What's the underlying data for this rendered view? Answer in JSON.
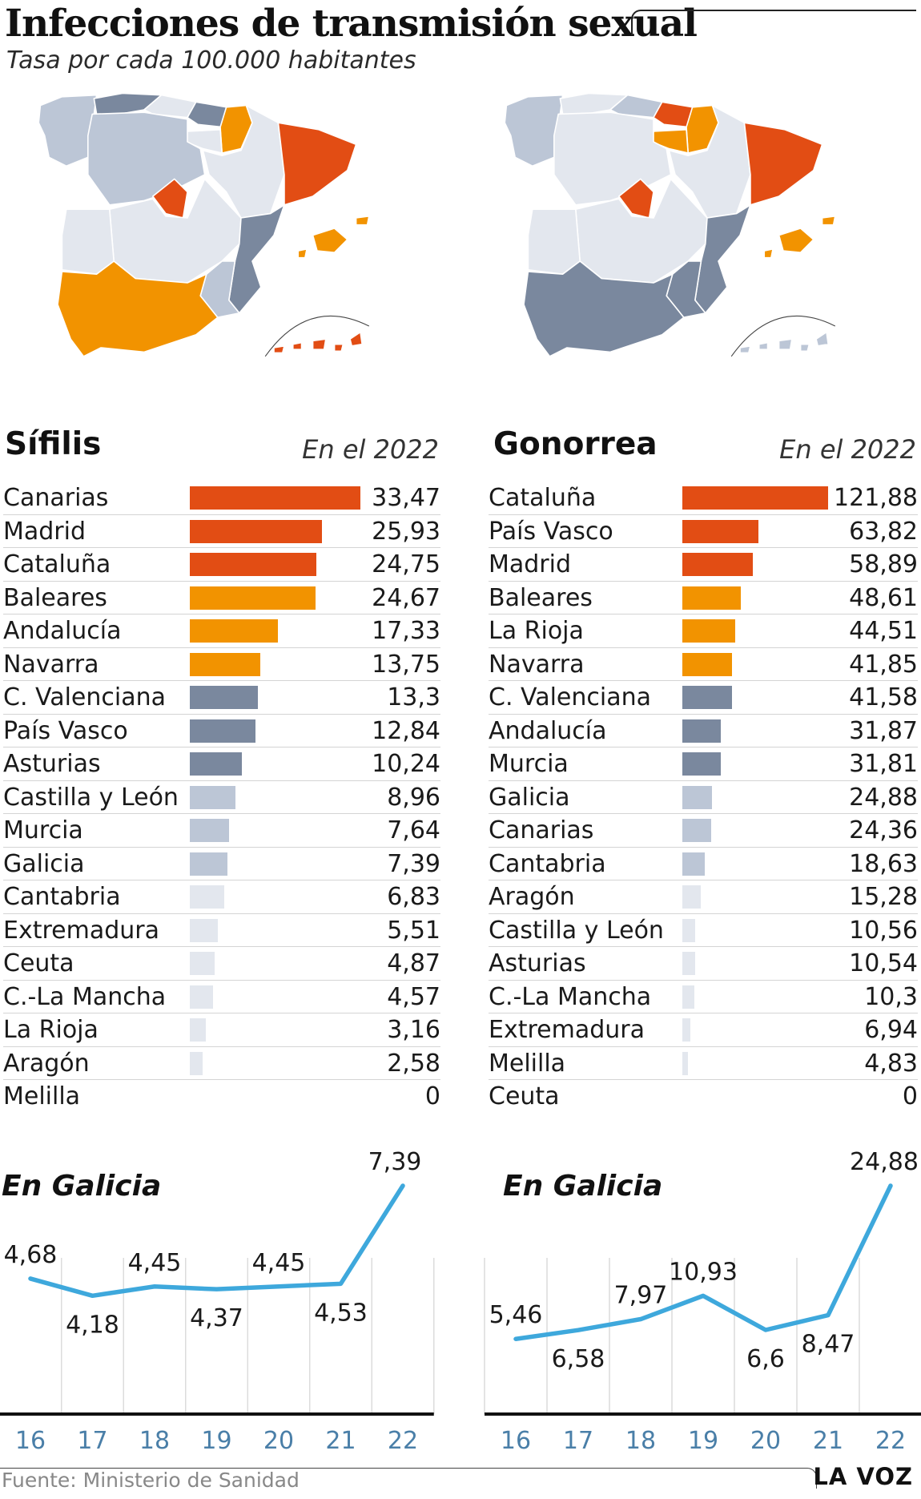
{
  "header": {
    "title": "Infecciones de transmisión sexual",
    "subtitle": "Tasa por cada 100.000 habitantes"
  },
  "colors": {
    "red": "#e24d14",
    "orange": "#f29300",
    "dark": "#7a889e",
    "light": "#bcc6d6",
    "pale": "#e3e7ee",
    "line": "#3ea8dc"
  },
  "sifilis": {
    "title": "Sífilis",
    "year_label": "En el 2022",
    "map_colors": {
      "galicia": "light",
      "asturias": "dark",
      "cantabria": "pale",
      "paisvasco": "dark",
      "navarra": "orange",
      "larioja": "pale",
      "aragon": "pale",
      "cataluna": "red",
      "castillayleon": "light",
      "madrid": "red",
      "clamancha": "pale",
      "extremadura": "pale",
      "valencia": "dark",
      "murcia": "light",
      "andalucia": "orange",
      "baleares": "orange",
      "canarias": "red"
    }
  },
  "gonorrea": {
    "title": "Gonorrea",
    "year_label": "En el 2022",
    "map_colors": {
      "galicia": "light",
      "asturias": "pale",
      "cantabria": "light",
      "paisvasco": "red",
      "navarra": "orange",
      "larioja": "orange",
      "aragon": "pale",
      "cataluna": "red",
      "castillayleon": "pale",
      "madrid": "red",
      "clamancha": "pale",
      "extremadura": "pale",
      "valencia": "dark",
      "murcia": "dark",
      "andalucia": "dark",
      "baleares": "orange",
      "canarias": "light"
    }
  },
  "chart_data": [
    {
      "type": "bar",
      "categories": [
        "Canarias",
        "Madrid",
        "Cataluña",
        "Baleares",
        "Andalucía",
        "Navarra",
        "C. Valenciana",
        "País Vasco",
        "Asturias",
        "Castilla y León",
        "Murcia",
        "Galicia",
        "Cantabria",
        "Extremadura",
        "Ceuta",
        "C.-La Mancha",
        "La Rioja",
        "Aragón",
        "Melilla"
      ],
      "values": [
        33.47,
        25.93,
        24.75,
        24.67,
        17.33,
        13.75,
        13.3,
        12.84,
        10.24,
        8.96,
        7.64,
        7.39,
        6.83,
        5.51,
        4.87,
        4.57,
        3.16,
        2.58,
        0
      ],
      "value_labels": [
        "33,47",
        "25,93",
        "24,75",
        "24,67",
        "17,33",
        "13,75",
        "13,3",
        "12,84",
        "10,24",
        "8,96",
        "7,64",
        "7,39",
        "6,83",
        "5,51",
        "4,87",
        "4,57",
        "3,16",
        "2,58",
        "0"
      ],
      "colors": [
        "red",
        "red",
        "red",
        "orange",
        "orange",
        "orange",
        "dark",
        "dark",
        "dark",
        "light",
        "light",
        "light",
        "pale",
        "pale",
        "pale",
        "pale",
        "pale",
        "pale",
        "pale"
      ],
      "title": "Sífilis",
      "subtitle": "En el 2022",
      "orientation": "horizontal"
    },
    {
      "type": "bar",
      "categories": [
        "Cataluña",
        "País Vasco",
        "Madrid",
        "Baleares",
        "La Rioja",
        "Navarra",
        "C. Valenciana",
        "Andalucía",
        "Murcia",
        "Galicia",
        "Canarias",
        "Cantabria",
        "Aragón",
        "Castilla y León",
        "Asturias",
        "C.-La Mancha",
        "Extremadura",
        "Melilla",
        "Ceuta"
      ],
      "values": [
        121.88,
        63.82,
        58.89,
        48.61,
        44.51,
        41.85,
        41.58,
        31.87,
        31.81,
        24.88,
        24.36,
        18.63,
        15.28,
        10.56,
        10.54,
        10.3,
        6.94,
        4.83,
        0
      ],
      "value_labels": [
        "121,88",
        "63,82",
        "58,89",
        "48,61",
        "44,51",
        "41,85",
        "41,58",
        "31,87",
        "31,81",
        "24,88",
        "24,36",
        "18,63",
        "15,28",
        "10,56",
        "10,54",
        "10,3",
        "6,94",
        "4,83",
        "0"
      ],
      "colors": [
        "red",
        "red",
        "red",
        "orange",
        "orange",
        "orange",
        "dark",
        "dark",
        "dark",
        "light",
        "light",
        "light",
        "pale",
        "pale",
        "pale",
        "pale",
        "pale",
        "pale",
        "pale"
      ],
      "title": "Gonorrea",
      "subtitle": "En el 2022",
      "orientation": "horizontal"
    },
    {
      "type": "line",
      "title": "En Galicia",
      "x": [
        "16",
        "17",
        "18",
        "19",
        "20",
        "21",
        "22"
      ],
      "values": [
        4.68,
        4.18,
        4.45,
        4.37,
        4.45,
        4.53,
        7.39
      ],
      "value_labels": [
        "4,68",
        "4,18",
        "4,45",
        "4,37",
        "4,45",
        "4,53",
        "7,39"
      ],
      "label_positions": [
        "above",
        "below",
        "above",
        "below",
        "above",
        "below",
        "above"
      ]
    },
    {
      "type": "line",
      "title": "En Galicia",
      "x": [
        "16",
        "17",
        "18",
        "19",
        "20",
        "21",
        "22"
      ],
      "values": [
        5.46,
        6.58,
        7.97,
        10.93,
        6.6,
        8.47,
        24.88
      ],
      "value_labels": [
        "5,46",
        "6,58",
        "7,97",
        "10,93",
        "6,6",
        "8,47",
        "24,88"
      ],
      "label_positions": [
        "above",
        "below",
        "above",
        "above",
        "below",
        "below",
        "above"
      ]
    }
  ],
  "footer": {
    "source": "Fuente: Ministerio de Sanidad",
    "brand": "LA VOZ"
  }
}
